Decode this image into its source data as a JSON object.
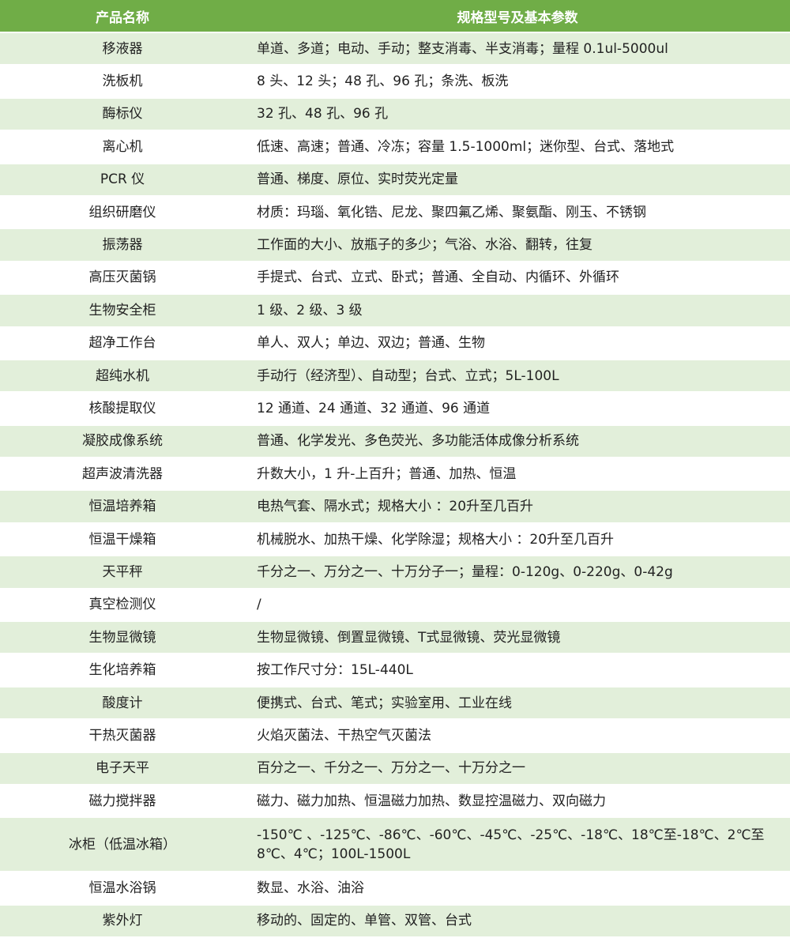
{
  "colors": {
    "header_bg": "#70ad47",
    "row_alt_bg": "#e2efda",
    "row_bg": "#ffffff"
  },
  "header": {
    "col1": "产品名称",
    "col2": "规格型号及基本参数"
  },
  "rows": [
    {
      "name": "移液器",
      "spec": "单道、多道；电动、手动；整支消毒、半支消毒；量程 0.1ul-5000ul"
    },
    {
      "name": "洗板机",
      "spec": "8 头、12 头；48 孔、96 孔；条洗、板洗"
    },
    {
      "name": "酶标仪",
      "spec": "32 孔、48 孔、96 孔"
    },
    {
      "name": "离心机",
      "spec": "低速、高速；普通、冷冻；容量 1.5-1000ml；迷你型、台式、落地式"
    },
    {
      "name": "PCR 仪",
      "spec": "普通、梯度、原位、实时荧光定量"
    },
    {
      "name": "组织研磨仪",
      "spec": "材质：玛瑙、氧化锆、尼龙、聚四氟乙烯、聚氨酯、刚玉、不锈钢"
    },
    {
      "name": "振荡器",
      "spec": "工作面的大小、放瓶子的多少；气浴、水浴、翻转，往复"
    },
    {
      "name": "高压灭菌锅",
      "spec": "手提式、台式、立式、卧式；普通、全自动、内循环、外循环"
    },
    {
      "name": "生物安全柜",
      "spec": "1 级、2 级、3 级"
    },
    {
      "name": "超净工作台",
      "spec": "单人、双人；单边、双边；普通、生物"
    },
    {
      "name": "超纯水机",
      "spec": "手动行（经济型）、自动型；台式、立式；5L-100L"
    },
    {
      "name": "核酸提取仪",
      "spec": "12 通道、24 通道、32 通道、96 通道"
    },
    {
      "name": "凝胶成像系统",
      "spec": "普通、化学发光、多色荧光、多功能活体成像分析系统"
    },
    {
      "name": "超声波清洗器",
      "spec": "升数大小，1 升-上百升；普通、加热、恒温"
    },
    {
      "name": "恒温培养箱",
      "spec": "电热气套、隔水式；规格大小 ：20升至几百升"
    },
    {
      "name": "恒温干燥箱",
      "spec": "机械脱水、加热干燥、化学除湿；规格大小 ：20升至几百升"
    },
    {
      "name": "天平秤",
      "spec": "千分之一、万分之一、十万分子一；量程：0-120g、0-220g、0-42g"
    },
    {
      "name": "真空检测仪",
      "spec": "/"
    },
    {
      "name": "生物显微镜",
      "spec": "生物显微镜、倒置显微镜、T式显微镜、荧光显微镜"
    },
    {
      "name": "生化培养箱",
      "spec": "按工作尺寸分：15L-440L"
    },
    {
      "name": "酸度计",
      "spec": "便携式、台式、笔式；实验室用、工业在线"
    },
    {
      "name": "干热灭菌器",
      "spec": "火焰灭菌法、干热空气灭菌法"
    },
    {
      "name": "电子天平",
      "spec": "百分之一、千分之一、万分之一、十万分之一"
    },
    {
      "name": "磁力搅拌器",
      "spec": "磁力、磁力加热、恒温磁力加热、数显控温磁力、双向磁力"
    },
    {
      "name": "冰柜（低温冰箱）",
      "spec": "-150℃ 、-125℃、-86℃、-60℃、-45℃、-25℃、-18℃、18℃至-18℃、2℃至8℃、4℃；100L-1500L"
    },
    {
      "name": "恒温水浴锅",
      "spec": "数显、水浴、油浴"
    },
    {
      "name": "紫外灯",
      "spec": "移动的、固定的、单管、双管、台式"
    }
  ]
}
